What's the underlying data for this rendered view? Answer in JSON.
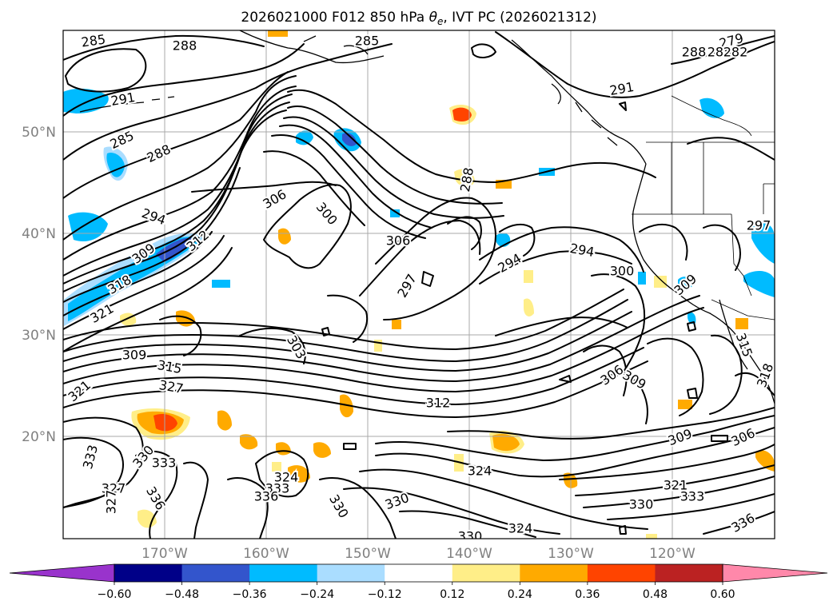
{
  "title": "2026021000 F012 850 hPa θe, IVT PC (2026021312)",
  "title_parts": {
    "prefix": "2026021000 F012 850 hPa ",
    "symbol": "θ",
    "subscript": "e",
    "suffix": ", IVT PC (2026021312)"
  },
  "map": {
    "lat_labels": [
      "50°N",
      "40°N",
      "30°N",
      "20°N"
    ],
    "lon_labels": [
      "170°W",
      "160°W",
      "150°W",
      "140°W",
      "130°W",
      "120°W"
    ]
  },
  "colorbar": {
    "ticks": [
      "−0.60",
      "−0.48",
      "−0.36",
      "−0.24",
      "−0.12",
      "0.12",
      "0.24",
      "0.36",
      "0.48",
      "0.60"
    ],
    "under_color": "#9933cc",
    "colors": [
      "#000088",
      "#3355cc",
      "#00bbff",
      "#aaddff",
      "#ffffff",
      "#ffee88",
      "#ffaa00",
      "#ff4400",
      "#bb2222"
    ],
    "over_color": "#ff88aa"
  },
  "contour_labels": [
    {
      "text": "285"
    },
    {
      "text": "288"
    },
    {
      "text": "285"
    },
    {
      "text": "279"
    },
    {
      "text": "288"
    },
    {
      "text": "285"
    },
    {
      "text": "282"
    },
    {
      "text": "291"
    },
    {
      "text": "291"
    },
    {
      "text": "285"
    },
    {
      "text": "288"
    },
    {
      "text": "288"
    },
    {
      "text": "294"
    },
    {
      "text": "306"
    },
    {
      "text": "300"
    },
    {
      "text": "306"
    },
    {
      "text": "309"
    },
    {
      "text": "312"
    },
    {
      "text": "294"
    },
    {
      "text": "294"
    },
    {
      "text": "297"
    },
    {
      "text": "297"
    },
    {
      "text": "300"
    },
    {
      "text": "318"
    },
    {
      "text": "321"
    },
    {
      "text": "309"
    },
    {
      "text": "303"
    },
    {
      "text": "309"
    },
    {
      "text": "315"
    },
    {
      "text": "306"
    },
    {
      "text": "309"
    },
    {
      "text": "327"
    },
    {
      "text": "321"
    },
    {
      "text": "312"
    },
    {
      "text": "315"
    },
    {
      "text": "318"
    },
    {
      "text": "309"
    },
    {
      "text": "306"
    },
    {
      "text": "333"
    },
    {
      "text": "330"
    },
    {
      "text": "333"
    },
    {
      "text": "324"
    },
    {
      "text": "324"
    },
    {
      "text": "327"
    },
    {
      "text": "336"
    },
    {
      "text": "333"
    },
    {
      "text": "336"
    },
    {
      "text": "327"
    },
    {
      "text": "330"
    },
    {
      "text": "330"
    },
    {
      "text": "330"
    },
    {
      "text": "321"
    },
    {
      "text": "333"
    },
    {
      "text": "324"
    },
    {
      "text": "330"
    },
    {
      "text": "336"
    }
  ]
}
